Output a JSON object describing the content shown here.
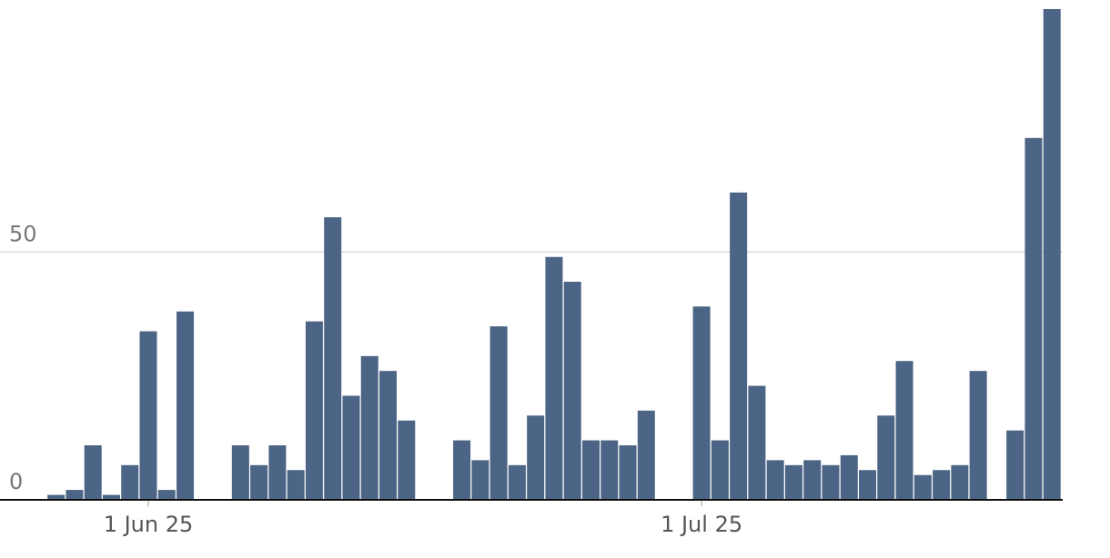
{
  "chart_data": {
    "type": "bar",
    "categories": [
      null,
      null,
      null,
      null,
      null,
      "1 Jun 25",
      null,
      null,
      null,
      null,
      null,
      null,
      null,
      null,
      null,
      null,
      null,
      null,
      null,
      null,
      null,
      null,
      null,
      null,
      null,
      null,
      null,
      null,
      null,
      null,
      null,
      null,
      null,
      null,
      null,
      "1 Jul 25",
      null,
      null,
      null,
      null,
      null,
      null,
      null,
      null,
      null,
      null,
      null,
      null,
      null,
      null,
      null,
      null,
      null,
      null,
      null
    ],
    "values": [
      1,
      2,
      11,
      1,
      7,
      34,
      2,
      38,
      0,
      0,
      11,
      7,
      11,
      6,
      36,
      57,
      21,
      29,
      26,
      16,
      0,
      0,
      12,
      8,
      35,
      7,
      17,
      49,
      44,
      12,
      12,
      11,
      18,
      0,
      0,
      39,
      12,
      62,
      23,
      8,
      7,
      8,
      7,
      9,
      6,
      17,
      28,
      5,
      6,
      7,
      26,
      0,
      14,
      73,
      99
    ],
    "color": "#4c6485",
    "ylim": [
      0,
      99
    ],
    "yticks": [
      0,
      50
    ],
    "grid": true
  }
}
